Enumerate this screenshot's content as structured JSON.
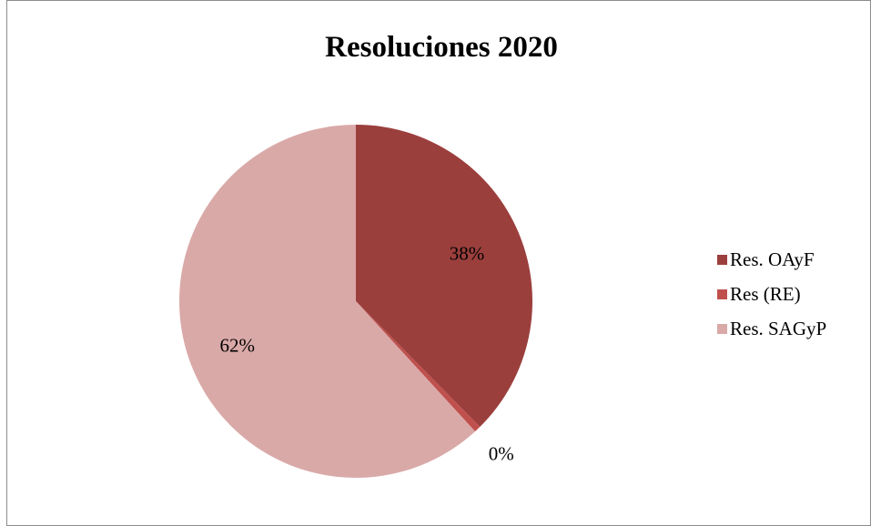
{
  "chart_data": {
    "type": "pie",
    "title": "Resoluciones 2020",
    "slices": [
      {
        "name": "Res. OAyF",
        "value": 37.6,
        "label": "38%",
        "color": "#9b3f3d"
      },
      {
        "name": "Res (RE)",
        "value": 0.6,
        "label": "0%",
        "color": "#c0504d"
      },
      {
        "name": "Res. SAGyP",
        "value": 61.8,
        "label": "62%",
        "color": "#d9a9a8"
      }
    ],
    "legend_position": "right"
  }
}
